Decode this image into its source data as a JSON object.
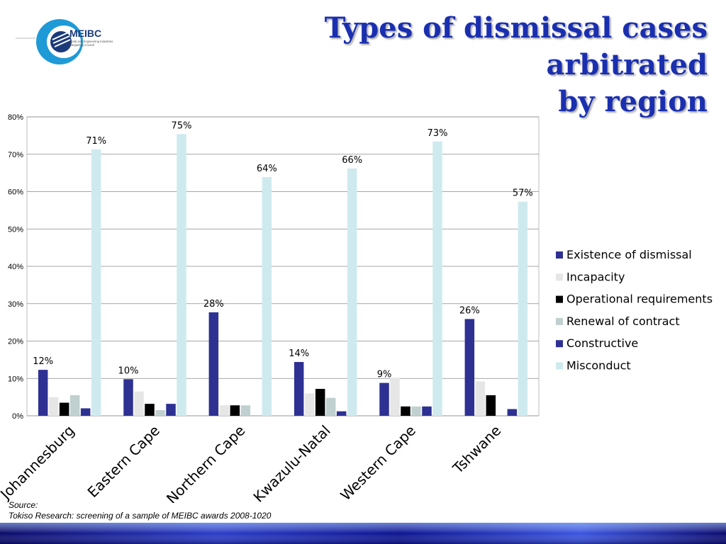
{
  "title_line1": "Types of dismissal cases arbitrated",
  "title_line2": "by region",
  "logo": {
    "name": "MEIBC",
    "subtitle_line1": "Metal and Engineering Industries",
    "subtitle_line2": "Bargaining Council"
  },
  "source": {
    "label": "Source:",
    "text": "Tokiso Research: screening of a sample of MEIBC awards 2008-1020"
  },
  "chart_data": {
    "type": "bar",
    "categories": [
      "Johannesburg",
      "Eastern Cape",
      "Northern Cape",
      "Kwazulu-Natal",
      "Western Cape",
      "Tshwane"
    ],
    "ylim": [
      0,
      80
    ],
    "yticks": [
      0,
      10,
      20,
      30,
      40,
      50,
      60,
      70,
      80
    ],
    "ytick_suffix": "%",
    "grid": true,
    "legend_position": "right",
    "series": [
      {
        "name": "Existence of dismissal",
        "color": "#2e3192",
        "values": [
          12.3,
          9.8,
          27.7,
          14.4,
          8.8,
          25.9
        ]
      },
      {
        "name": "Incapacity",
        "color": "#e6e6e6",
        "values": [
          5.0,
          6.5,
          2.8,
          6.0,
          10.2,
          9.2
        ]
      },
      {
        "name": "Operational requirements",
        "color": "#000000",
        "values": [
          3.5,
          3.2,
          2.8,
          7.2,
          2.5,
          5.5
        ]
      },
      {
        "name": "Renewal of contract",
        "color": "#c0cfcf",
        "values": [
          5.5,
          1.5,
          2.8,
          4.8,
          2.5,
          0
        ]
      },
      {
        "name": "Constructive",
        "color": "#2e3192",
        "values": [
          2.0,
          3.2,
          0,
          1.2,
          2.5,
          1.8
        ]
      },
      {
        "name": "Misconduct",
        "color": "#cfeaee",
        "values": [
          71.3,
          75.4,
          63.9,
          66.2,
          73.4,
          57.3
        ]
      }
    ],
    "data_labels": {
      "Existence of dismissal": [
        "12%",
        "10%",
        "28%",
        "14%",
        "9%",
        "26%"
      ],
      "Misconduct": [
        "71%",
        "75%",
        "64%",
        "66%",
        "73%",
        "57%"
      ]
    }
  }
}
